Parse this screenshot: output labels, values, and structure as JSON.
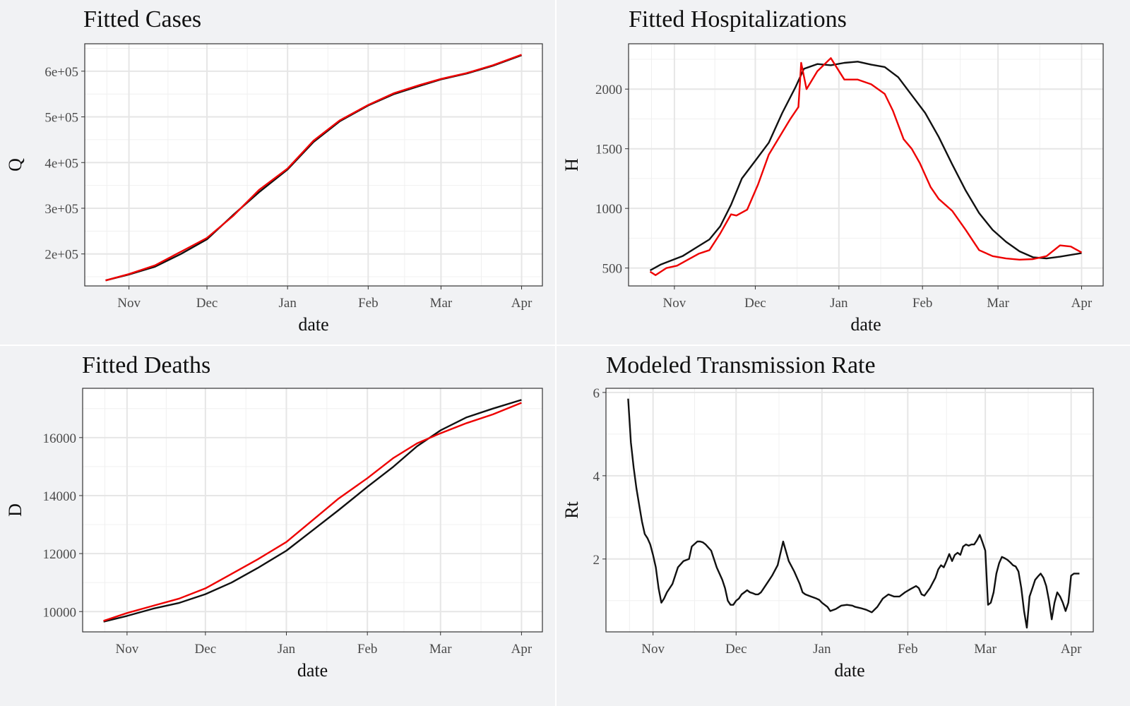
{
  "chart_data": [
    {
      "id": "cases",
      "type": "line",
      "title": "Fitted Cases",
      "xlabel": "date",
      "ylabel": "Q",
      "x_ticks": [
        {
          "label": "Nov",
          "day": 17
        },
        {
          "label": "Dec",
          "day": 47
        },
        {
          "label": "Jan",
          "day": 78
        },
        {
          "label": "Feb",
          "day": 109
        },
        {
          "label": "Mar",
          "day": 137
        },
        {
          "label": "Apr",
          "day": 168
        }
      ],
      "xlim": [
        0,
        176
      ],
      "ylim": [
        130000,
        660000
      ],
      "y_ticks": [
        {
          "label": "2e+05",
          "value": 200000
        },
        {
          "label": "3e+05",
          "value": 300000
        },
        {
          "label": "4e+05",
          "value": 400000
        },
        {
          "label": "5e+05",
          "value": 500000
        },
        {
          "label": "6e+05",
          "value": 600000
        }
      ],
      "grid": true,
      "series": [
        {
          "color": "#111111",
          "x": [
            8,
            17,
            27,
            37,
            47,
            57,
            67,
            78,
            88,
            98,
            109,
            119,
            129,
            137,
            147,
            157,
            168
          ],
          "y": [
            142000,
            155000,
            172000,
            200000,
            232000,
            285000,
            335000,
            385000,
            445000,
            490000,
            525000,
            550000,
            568000,
            582000,
            595000,
            612000,
            635000
          ]
        },
        {
          "color": "#ee0000",
          "x": [
            8,
            17,
            27,
            37,
            47,
            57,
            67,
            78,
            88,
            98,
            109,
            119,
            129,
            137,
            147,
            157,
            168
          ],
          "y": [
            142000,
            156000,
            175000,
            205000,
            235000,
            283000,
            340000,
            387000,
            448000,
            492000,
            526000,
            552000,
            570000,
            583000,
            596000,
            613000,
            636000
          ]
        }
      ]
    },
    {
      "id": "hosp",
      "type": "line",
      "title": "Fitted Hospitalizations",
      "xlabel": "date",
      "ylabel": "H",
      "x_ticks": [
        {
          "label": "Nov",
          "day": 17
        },
        {
          "label": "Dec",
          "day": 47
        },
        {
          "label": "Jan",
          "day": 78
        },
        {
          "label": "Feb",
          "day": 109
        },
        {
          "label": "Mar",
          "day": 137
        },
        {
          "label": "Apr",
          "day": 168
        }
      ],
      "xlim": [
        0,
        176
      ],
      "ylim": [
        350,
        2380
      ],
      "y_ticks": [
        {
          "label": "500",
          "value": 500
        },
        {
          "label": "1000",
          "value": 1000
        },
        {
          "label": "1500",
          "value": 1500
        },
        {
          "label": "2000",
          "value": 2000
        }
      ],
      "grid": true,
      "series": [
        {
          "color": "#111111",
          "x": [
            8,
            12,
            20,
            25,
            30,
            34,
            38,
            42,
            47,
            52,
            57,
            62,
            65,
            70,
            75,
            80,
            85,
            90,
            95,
            100,
            105,
            110,
            115,
            120,
            125,
            130,
            135,
            140,
            145,
            150,
            155,
            160,
            168
          ],
          "y": [
            480,
            530,
            600,
            670,
            740,
            850,
            1030,
            1250,
            1400,
            1550,
            1800,
            2020,
            2170,
            2210,
            2200,
            2220,
            2230,
            2205,
            2185,
            2100,
            1950,
            1800,
            1600,
            1370,
            1150,
            960,
            820,
            720,
            640,
            590,
            580,
            595,
            625
          ]
        },
        {
          "color": "#ee0000",
          "x": [
            8,
            10,
            14,
            18,
            22,
            26,
            30,
            34,
            38,
            40,
            44,
            48,
            52,
            56,
            60,
            63,
            64,
            66,
            70,
            75,
            80,
            85,
            90,
            95,
            98,
            102,
            105,
            108,
            112,
            115,
            120,
            125,
            130,
            135,
            140,
            145,
            150,
            155,
            160,
            164,
            168
          ],
          "y": [
            470,
            440,
            500,
            520,
            570,
            620,
            650,
            790,
            950,
            940,
            990,
            1200,
            1450,
            1600,
            1750,
            1850,
            2220,
            2000,
            2150,
            2260,
            2080,
            2080,
            2040,
            1960,
            1820,
            1580,
            1500,
            1380,
            1180,
            1080,
            980,
            820,
            650,
            600,
            580,
            570,
            575,
            600,
            690,
            680,
            630
          ]
        }
      ]
    },
    {
      "id": "deaths",
      "type": "line",
      "title": "Fitted Deaths",
      "xlabel": "date",
      "ylabel": "D",
      "x_ticks": [
        {
          "label": "Nov",
          "day": 17
        },
        {
          "label": "Dec",
          "day": 47
        },
        {
          "label": "Jan",
          "day": 78
        },
        {
          "label": "Feb",
          "day": 109
        },
        {
          "label": "Mar",
          "day": 137
        },
        {
          "label": "Apr",
          "day": 168
        }
      ],
      "xlim": [
        0,
        176
      ],
      "ylim": [
        9300,
        17700
      ],
      "y_ticks": [
        {
          "label": "10000",
          "value": 10000
        },
        {
          "label": "12000",
          "value": 12000
        },
        {
          "label": "14000",
          "value": 14000
        },
        {
          "label": "16000",
          "value": 16000
        }
      ],
      "grid": true,
      "series": [
        {
          "color": "#111111",
          "x": [
            8,
            17,
            27,
            37,
            47,
            57,
            67,
            78,
            88,
            98,
            109,
            119,
            128,
            137,
            147,
            157,
            168
          ],
          "y": [
            9650,
            9850,
            10100,
            10300,
            10600,
            11000,
            11500,
            12100,
            12800,
            13500,
            14300,
            15000,
            15700,
            16250,
            16700,
            17000,
            17300
          ]
        },
        {
          "color": "#ee0000",
          "x": [
            8,
            17,
            27,
            37,
            47,
            57,
            67,
            78,
            88,
            98,
            109,
            119,
            128,
            137,
            147,
            157,
            168
          ],
          "y": [
            9680,
            9950,
            10200,
            10450,
            10800,
            11300,
            11800,
            12400,
            13150,
            13900,
            14600,
            15300,
            15800,
            16150,
            16500,
            16800,
            17200
          ]
        }
      ]
    },
    {
      "id": "rt",
      "type": "line",
      "title": "Modeled Transmission Rate",
      "xlabel": "date",
      "ylabel": "Rt",
      "x_ticks": [
        {
          "label": "Nov",
          "day": 17
        },
        {
          "label": "Dec",
          "day": 47
        },
        {
          "label": "Jan",
          "day": 78
        },
        {
          "label": "Feb",
          "day": 109
        },
        {
          "label": "Mar",
          "day": 137
        },
        {
          "label": "Apr",
          "day": 168
        }
      ],
      "xlim": [
        0,
        176
      ],
      "ylim": [
        0.25,
        6.1
      ],
      "y_ticks": [
        {
          "label": "2",
          "value": 2
        },
        {
          "label": "4",
          "value": 4
        },
        {
          "label": "6",
          "value": 6
        }
      ],
      "grid": true,
      "series": [
        {
          "color": "#111111",
          "x": [
            8,
            9,
            10,
            11,
            12,
            13,
            14,
            15,
            16,
            17,
            18,
            19,
            20,
            21,
            22,
            23,
            24,
            26,
            28,
            30,
            31,
            33,
            34,
            35,
            36,
            38,
            39,
            40,
            42,
            43,
            44,
            45,
            46,
            47,
            48,
            49,
            50,
            51,
            52,
            53,
            54,
            55,
            56,
            57,
            58,
            59,
            60,
            62,
            64,
            66,
            68,
            70,
            71,
            72,
            74,
            76,
            77,
            78,
            79,
            80,
            81,
            83,
            85,
            87,
            89,
            90,
            92,
            94,
            96,
            98,
            100,
            102,
            104,
            106,
            108,
            110,
            112,
            113,
            114,
            115,
            117,
            119,
            120,
            121,
            122,
            123,
            124,
            125,
            126,
            127,
            128,
            129,
            130,
            131,
            132,
            133,
            134,
            135,
            136,
            137,
            138,
            139,
            140,
            141,
            142,
            143,
            144,
            145,
            146,
            147,
            148,
            149,
            150,
            151,
            152,
            153,
            154,
            155,
            156,
            157,
            158,
            159,
            160,
            161,
            162,
            163,
            164,
            165,
            166,
            167,
            168,
            169,
            170,
            171
          ],
          "y": [
            5.85,
            4.8,
            4.2,
            3.7,
            3.3,
            2.9,
            2.6,
            2.5,
            2.35,
            2.1,
            1.8,
            1.3,
            0.95,
            1.05,
            1.2,
            1.3,
            1.4,
            1.8,
            1.95,
            2.0,
            2.3,
            2.42,
            2.42,
            2.4,
            2.35,
            2.2,
            2.0,
            1.8,
            1.5,
            1.3,
            1.0,
            0.9,
            0.9,
            1.0,
            1.05,
            1.15,
            1.2,
            1.25,
            1.2,
            1.18,
            1.15,
            1.15,
            1.2,
            1.3,
            1.4,
            1.5,
            1.6,
            1.85,
            2.42,
            1.95,
            1.7,
            1.4,
            1.2,
            1.15,
            1.1,
            1.05,
            1.02,
            0.95,
            0.9,
            0.85,
            0.75,
            0.8,
            0.88,
            0.9,
            0.88,
            0.85,
            0.82,
            0.78,
            0.72,
            0.85,
            1.05,
            1.15,
            1.1,
            1.1,
            1.2,
            1.28,
            1.35,
            1.3,
            1.15,
            1.12,
            1.3,
            1.55,
            1.75,
            1.85,
            1.8,
            1.95,
            2.12,
            1.95,
            2.1,
            2.15,
            2.1,
            2.3,
            2.35,
            2.32,
            2.35,
            2.35,
            2.45,
            2.58,
            2.4,
            2.2,
            0.9,
            0.95,
            1.2,
            1.65,
            1.9,
            2.05,
            2.02,
            1.98,
            1.92,
            1.85,
            1.82,
            1.7,
            1.3,
            0.75,
            0.35,
            1.1,
            1.3,
            1.5,
            1.58,
            1.65,
            1.55,
            1.35,
            1.0,
            0.55,
            0.95,
            1.2,
            1.1,
            0.95,
            0.75,
            0.95,
            1.6,
            1.65,
            1.65,
            1.65
          ]
        }
      ]
    }
  ]
}
